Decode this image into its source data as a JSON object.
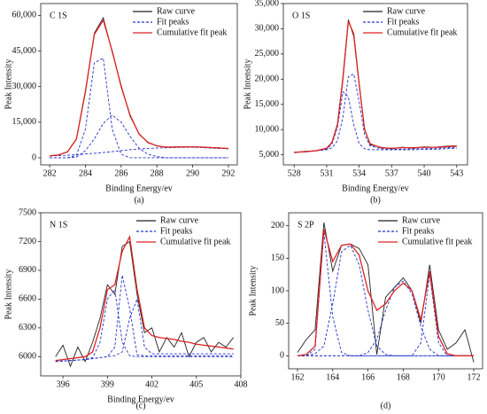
{
  "chart_data": [
    {
      "type": "line",
      "annotation": "C 1S",
      "caption": "(a)",
      "xlabel": "Binding Energy/ev",
      "ylabel": "Peak Intensity",
      "x": [
        282,
        282.5,
        283,
        283.5,
        284,
        284.5,
        285,
        285.5,
        286,
        286.5,
        287,
        287.5,
        288,
        288.5,
        289,
        289.5,
        290,
        290.5,
        291,
        291.5,
        292
      ],
      "xlim": [
        281.5,
        292.5
      ],
      "xticks": [
        282,
        284,
        286,
        288,
        290,
        292
      ],
      "ylim": [
        -3000,
        65000
      ],
      "yticks": [
        0,
        {
          "value": 15000,
          "label": "15,000"
        },
        {
          "value": 30000,
          "label": "30,000"
        },
        {
          "value": 45000,
          "label": "45,000"
        },
        {
          "value": 60000,
          "label": "60,000"
        }
      ],
      "legend": "upper right",
      "series": [
        {
          "name": "Raw curve",
          "color": "#222222",
          "values": [
            900,
            1100,
            2600,
            7800,
            27500,
            52500,
            59000,
            44500,
            30500,
            17500,
            10200,
            6300,
            5100,
            4400,
            4600,
            4500,
            4700,
            4400,
            4300,
            4200,
            3800
          ]
        },
        {
          "name": "Fit peaks",
          "color": "#2233cc",
          "dashed": true,
          "values": [
            0,
            0,
            0,
            1000,
            12000,
            40000,
            42000,
            12000,
            1500,
            0,
            0,
            0,
            0,
            0,
            0,
            0,
            0,
            0,
            0,
            0,
            0
          ]
        },
        {
          "color": "#2233cc",
          "dashed": true,
          "values": [
            0,
            0,
            0,
            300,
            3000,
            8000,
            14500,
            18000,
            15000,
            9000,
            4000,
            1500,
            500,
            0,
            0,
            0,
            0,
            0,
            0,
            0,
            0
          ]
        },
        {
          "color": "#2233cc",
          "dashed": true,
          "values": [
            800,
            900,
            1100,
            1300,
            1600,
            1900,
            2200,
            2600,
            3000,
            3400,
            3700,
            3900,
            4100,
            4200,
            4300,
            4400,
            4400,
            4300,
            4100,
            3900,
            3800
          ]
        },
        {
          "name": "Cumulative fit peak",
          "color": "#dd2222",
          "values": [
            800,
            1200,
            2500,
            8000,
            28000,
            52000,
            58000,
            45000,
            30000,
            18000,
            10000,
            6500,
            5000,
            4500,
            4500,
            4600,
            4600,
            4500,
            4300,
            4100,
            3900
          ]
        }
      ]
    },
    {
      "type": "line",
      "annotation": "O 1S",
      "caption": "(b)",
      "xlabel": "Binding Energy/ev",
      "ylabel": "Peak Intensity",
      "x": [
        528,
        529,
        530,
        531,
        531.5,
        532,
        532.5,
        533,
        533.5,
        534,
        534.5,
        535,
        536,
        537,
        538,
        539,
        540,
        541,
        542,
        543
      ],
      "xlim": [
        527,
        544
      ],
      "xticks": [
        528,
        531,
        534,
        537,
        540,
        543
      ],
      "ylim": [
        3000,
        35000
      ],
      "yticks": [
        {
          "value": 5000,
          "label": "5,000"
        },
        {
          "value": 10000,
          "label": "10,000"
        },
        {
          "value": 15000,
          "label": "15,000"
        },
        {
          "value": 20000,
          "label": "20,000"
        },
        {
          "value": 25000,
          "label": "25,000"
        },
        {
          "value": 30000,
          "label": "30,000"
        },
        {
          "value": 35000,
          "label": "35,000"
        }
      ],
      "legend": "upper right",
      "series": [
        {
          "name": "Raw curve",
          "color": "#222222",
          "values": [
            5400,
            5700,
            5800,
            6200,
            7600,
            11200,
            20500,
            31800,
            28500,
            18800,
            10200,
            7000,
            6500,
            6200,
            6500,
            6300,
            6600,
            6500,
            6700,
            6800
          ]
        },
        {
          "name": "Fit peaks",
          "color": "#2233cc",
          "dashed": true,
          "values": [
            5500,
            5600,
            5800,
            6100,
            7200,
            10500,
            17500,
            16500,
            11000,
            7200,
            6200,
            6000,
            6000,
            6000,
            6000,
            6000,
            6100,
            6100,
            6200,
            6300
          ]
        },
        {
          "color": "#2233cc",
          "dashed": true,
          "values": [
            5500,
            5600,
            5800,
            6000,
            6400,
            7800,
            12500,
            20500,
            21000,
            15500,
            9000,
            6800,
            6200,
            6100,
            6100,
            6200,
            6200,
            6300,
            6400,
            6500
          ]
        },
        {
          "name": "Cumulative fit peak",
          "color": "#dd2222",
          "values": [
            5500,
            5600,
            5800,
            6300,
            7500,
            11000,
            20000,
            31500,
            29000,
            19000,
            10000,
            7200,
            6400,
            6300,
            6400,
            6400,
            6500,
            6500,
            6600,
            6700
          ]
        }
      ]
    },
    {
      "type": "line",
      "annotation": "N 1S",
      "caption": "(c)",
      "xlabel": "Binding Energy/ev",
      "ylabel": "Peak Intensity",
      "x": [
        395.5,
        396,
        396.5,
        397,
        397.5,
        398,
        398.5,
        399,
        399.5,
        400,
        400.5,
        401,
        401.5,
        402,
        402.5,
        403,
        403.5,
        404,
        404.5,
        405,
        405.5,
        406,
        406.5,
        407,
        407.5
      ],
      "xlim": [
        394.5,
        408
      ],
      "xticks": [
        396,
        399,
        402,
        405,
        408
      ],
      "ylim": [
        5800,
        7500
      ],
      "yticks": [
        6000,
        6300,
        6600,
        6900,
        7200,
        7500
      ],
      "legend": "upper right",
      "series": [
        {
          "name": "Raw curve",
          "color": "#222222",
          "values": [
            6000,
            6120,
            5900,
            6100,
            5950,
            6150,
            6400,
            6750,
            6650,
            7150,
            7200,
            6650,
            6250,
            6300,
            6050,
            6200,
            6100,
            6250,
            6000,
            6150,
            6200,
            6050,
            6150,
            6100,
            6200
          ]
        },
        {
          "name": "Fit peaks",
          "color": "#2233cc",
          "dashed": true,
          "values": [
            5950,
            5955,
            5960,
            5965,
            5970,
            5990,
            6150,
            6600,
            6700,
            6150,
            6010,
            6000,
            6000,
            6000,
            6000,
            6000,
            6000,
            6000,
            6000,
            6000,
            6000,
            6000,
            6000,
            6000,
            6000
          ]
        },
        {
          "color": "#2233cc",
          "dashed": true,
          "values": [
            5950,
            5955,
            5960,
            5965,
            5970,
            5980,
            5990,
            6000,
            6100,
            6850,
            6500,
            6020,
            6010,
            6010,
            6010,
            6010,
            6010,
            6010,
            6010,
            6010,
            6010,
            6010,
            6010,
            6010,
            6010
          ]
        },
        {
          "color": "#2233cc",
          "dashed": true,
          "values": [
            5950,
            5955,
            5960,
            5965,
            5970,
            5980,
            5990,
            6000,
            6010,
            6050,
            6400,
            6600,
            6100,
            6030,
            6030,
            6030,
            6030,
            6030,
            6030,
            6030,
            6030,
            6030,
            6030,
            6030,
            6030
          ]
        },
        {
          "name": "Cumulative fit peak",
          "color": "#dd2222",
          "values": [
            5960,
            5970,
            5980,
            5990,
            6000,
            6050,
            6300,
            6700,
            6750,
            7100,
            7250,
            6700,
            6300,
            6220,
            6200,
            6190,
            6180,
            6160,
            6150,
            6130,
            6120,
            6110,
            6100,
            6090,
            6080
          ]
        }
      ]
    },
    {
      "type": "line",
      "annotation": "S 2P",
      "caption": "(d)",
      "ylabel": "Peak Intensity",
      "x": [
        162,
        162.5,
        163,
        163.5,
        164,
        164.5,
        165,
        165.5,
        166,
        166.5,
        167,
        167.5,
        168,
        168.5,
        169,
        169.5,
        170,
        170.5,
        171,
        171.5,
        172
      ],
      "xlim": [
        161.5,
        172.5
      ],
      "xticks": [
        162,
        164,
        166,
        168,
        170,
        172
      ],
      "ylim": [
        -20,
        220
      ],
      "yticks": [
        0,
        50,
        100,
        150,
        200
      ],
      "legend": "upper right",
      "series": [
        {
          "name": "Raw curve",
          "color": "#222222",
          "values": [
            5,
            25,
            40,
            205,
            130,
            170,
            172,
            165,
            140,
            2,
            90,
            105,
            120,
            100,
            50,
            140,
            40,
            10,
            20,
            40,
            -10
          ]
        },
        {
          "name": "Fit peaks",
          "color": "#2233cc",
          "dashed": true,
          "values": [
            0,
            0,
            10,
            190,
            60,
            5,
            0,
            0,
            0,
            0,
            0,
            0,
            0,
            0,
            0,
            0,
            0,
            0,
            0,
            0,
            0
          ]
        },
        {
          "color": "#2233cc",
          "dashed": true,
          "values": [
            0,
            0,
            3,
            15,
            80,
            160,
            170,
            140,
            70,
            15,
            2,
            0,
            0,
            0,
            0,
            0,
            0,
            0,
            0,
            0,
            0
          ]
        },
        {
          "color": "#2233cc",
          "dashed": true,
          "values": [
            0,
            0,
            0,
            0,
            0,
            0,
            0,
            0,
            5,
            25,
            70,
            105,
            115,
            95,
            45,
            10,
            0,
            0,
            0,
            0,
            0
          ]
        },
        {
          "color": "#2233cc",
          "dashed": true,
          "values": [
            0,
            0,
            0,
            0,
            0,
            0,
            0,
            0,
            0,
            0,
            0,
            0,
            0,
            0,
            20,
            125,
            20,
            0,
            0,
            0,
            0
          ]
        },
        {
          "name": "Cumulative fit peak",
          "color": "#dd2222",
          "values": [
            0,
            2,
            15,
            195,
            145,
            170,
            172,
            155,
            100,
            70,
            80,
            100,
            112,
            100,
            55,
            130,
            30,
            3,
            0,
            0,
            0
          ]
        }
      ]
    }
  ]
}
